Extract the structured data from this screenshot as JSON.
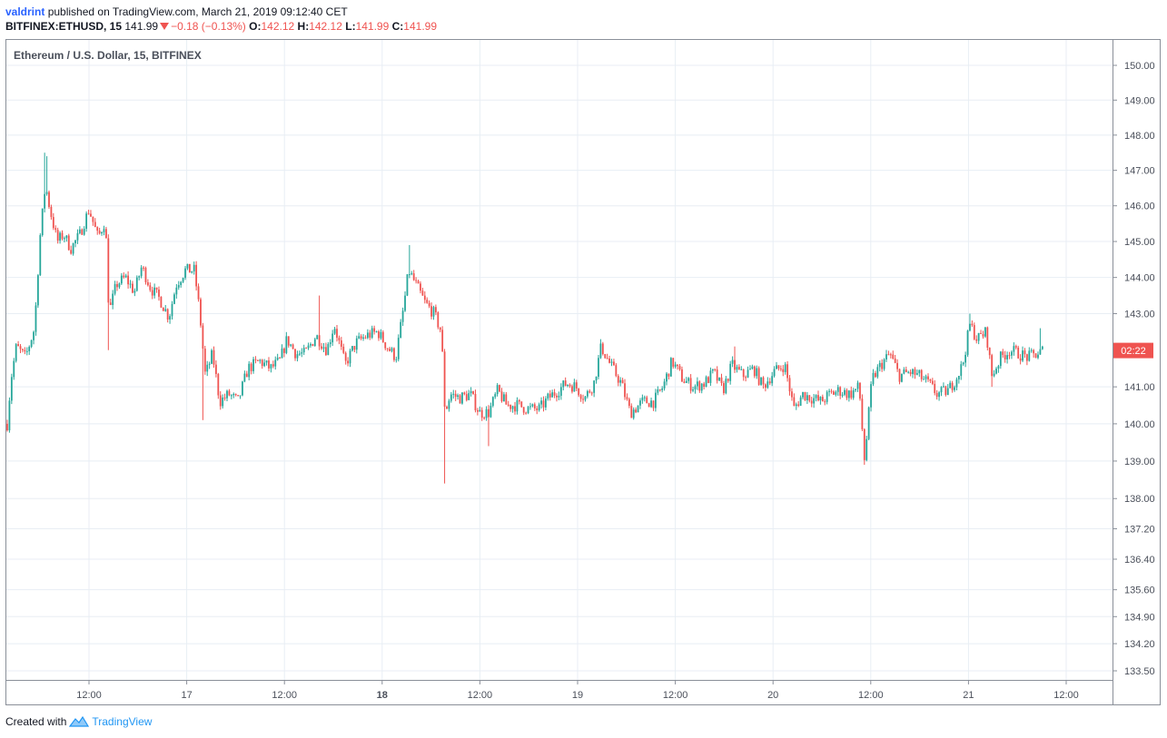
{
  "header": {
    "author": "valdrint",
    "published": "published on TradingView.com, March 21, 2019 09:12:40 CET",
    "symbol": "BITFINEX:ETHUSD, 15",
    "last": "141.99",
    "change": "−0.18 (−0.13%)",
    "o_label": "O:",
    "o_val": "142.12",
    "h_label": "H:",
    "h_val": "142.12",
    "l_label": "L:",
    "l_val": "141.99",
    "c_label": "C:",
    "c_val": "141.99"
  },
  "colors": {
    "up": "#26a69a",
    "down": "#ef5350",
    "grid": "#e8eef4",
    "brand": "#2196f3"
  },
  "footer": {
    "created": "Created with",
    "brand": "TradingView"
  },
  "chart_data": {
    "type": "candlestick",
    "title": "Ethereum / U.S. Dollar, 15, BITFINEX",
    "scale": "log",
    "ylim": [
      133.2,
      150.5
    ],
    "y_ticks": [
      "150.00",
      "149.00",
      "148.00",
      "147.00",
      "146.00",
      "145.00",
      "144.00",
      "143.00",
      "141.00",
      "140.00",
      "139.00",
      "138.00",
      "137.20",
      "136.40",
      "135.60",
      "134.90",
      "134.20",
      "133.50"
    ],
    "x_ticks": [
      {
        "label": "12:00",
        "bold": false
      },
      {
        "label": "17",
        "bold": false
      },
      {
        "label": "12:00",
        "bold": false
      },
      {
        "label": "18",
        "bold": true
      },
      {
        "label": "12:00",
        "bold": false
      },
      {
        "label": "19",
        "bold": false
      },
      {
        "label": "12:00",
        "bold": false
      },
      {
        "label": "20",
        "bold": false
      },
      {
        "label": "12:00",
        "bold": false
      },
      {
        "label": "21",
        "bold": false
      },
      {
        "label": "12:00",
        "bold": false
      }
    ],
    "last_price_label": "02:22",
    "last_price": 141.99,
    "close_path": [
      [
        0,
        140.0
      ],
      [
        4,
        141.2
      ],
      [
        10,
        142.1
      ],
      [
        20,
        141.8
      ],
      [
        30,
        142.6
      ],
      [
        36,
        145.1
      ],
      [
        42,
        146.6
      ],
      [
        47,
        145.9
      ],
      [
        55,
        145.0
      ],
      [
        62,
        145.2
      ],
      [
        70,
        144.8
      ],
      [
        80,
        145.2
      ],
      [
        90,
        145.9
      ],
      [
        100,
        145.1
      ],
      [
        108,
        145.6
      ],
      [
        112,
        143.0
      ],
      [
        120,
        143.8
      ],
      [
        130,
        144.0
      ],
      [
        140,
        143.6
      ],
      [
        148,
        144.3
      ],
      [
        158,
        143.7
      ],
      [
        168,
        143.4
      ],
      [
        178,
        142.9
      ],
      [
        186,
        143.8
      ],
      [
        196,
        144.2
      ],
      [
        206,
        144.2
      ],
      [
        212,
        143.0
      ],
      [
        218,
        141.3
      ],
      [
        226,
        141.9
      ],
      [
        234,
        140.6
      ],
      [
        244,
        140.8
      ],
      [
        254,
        140.6
      ],
      [
        265,
        141.5
      ],
      [
        278,
        141.7
      ],
      [
        290,
        141.5
      ],
      [
        300,
        141.7
      ],
      [
        308,
        142.3
      ],
      [
        318,
        141.9
      ],
      [
        328,
        141.9
      ],
      [
        340,
        142.4
      ],
      [
        352,
        142.0
      ],
      [
        360,
        142.7
      ],
      [
        372,
        141.6
      ],
      [
        384,
        142.2
      ],
      [
        396,
        142.4
      ],
      [
        408,
        142.5
      ],
      [
        418,
        142.1
      ],
      [
        428,
        141.8
      ],
      [
        436,
        143.1
      ],
      [
        442,
        144.2
      ],
      [
        452,
        143.7
      ],
      [
        460,
        143.3
      ],
      [
        470,
        143.0
      ],
      [
        478,
        142.5
      ],
      [
        482,
        140.3
      ],
      [
        488,
        140.8
      ],
      [
        498,
        140.7
      ],
      [
        510,
        140.8
      ],
      [
        520,
        140.3
      ],
      [
        530,
        140.3
      ],
      [
        540,
        140.9
      ],
      [
        550,
        140.5
      ],
      [
        562,
        140.5
      ],
      [
        574,
        140.4
      ],
      [
        586,
        140.4
      ],
      [
        596,
        140.7
      ],
      [
        606,
        140.9
      ],
      [
        616,
        141.1
      ],
      [
        626,
        141.0
      ],
      [
        636,
        140.7
      ],
      [
        646,
        141.1
      ],
      [
        654,
        142.1
      ],
      [
        664,
        141.6
      ],
      [
        676,
        141.1
      ],
      [
        686,
        140.3
      ],
      [
        700,
        140.6
      ],
      [
        712,
        140.6
      ],
      [
        722,
        141.0
      ],
      [
        732,
        141.7
      ],
      [
        744,
        141.2
      ],
      [
        756,
        141.0
      ],
      [
        768,
        141.1
      ],
      [
        778,
        141.4
      ],
      [
        788,
        140.9
      ],
      [
        798,
        141.6
      ],
      [
        810,
        141.3
      ],
      [
        822,
        141.5
      ],
      [
        832,
        141.0
      ],
      [
        844,
        141.4
      ],
      [
        856,
        141.6
      ],
      [
        866,
        140.4
      ],
      [
        876,
        140.8
      ],
      [
        886,
        140.7
      ],
      [
        896,
        140.6
      ],
      [
        906,
        140.8
      ],
      [
        916,
        140.9
      ],
      [
        928,
        140.8
      ],
      [
        938,
        141.0
      ],
      [
        944,
        139.0
      ],
      [
        952,
        141.2
      ],
      [
        962,
        141.6
      ],
      [
        972,
        141.9
      ],
      [
        982,
        141.3
      ],
      [
        994,
        141.4
      ],
      [
        1004,
        141.3
      ],
      [
        1014,
        141.1
      ],
      [
        1024,
        140.8
      ],
      [
        1036,
        140.9
      ],
      [
        1044,
        141.2
      ],
      [
        1052,
        141.6
      ],
      [
        1060,
        142.7
      ],
      [
        1068,
        142.3
      ],
      [
        1078,
        142.5
      ],
      [
        1084,
        141.3
      ],
      [
        1094,
        141.8
      ],
      [
        1104,
        142.0
      ],
      [
        1114,
        141.9
      ],
      [
        1124,
        141.8
      ],
      [
        1134,
        141.9
      ],
      [
        1140,
        142.0
      ]
    ],
    "spikes": [
      {
        "x": 40,
        "high": 147.5
      },
      {
        "x": 44,
        "high": 147.4
      },
      {
        "x": 112,
        "low": 142.0
      },
      {
        "x": 216,
        "low": 140.1
      },
      {
        "x": 344,
        "high": 143.5
      },
      {
        "x": 442,
        "high": 144.9
      },
      {
        "x": 482,
        "low": 138.4
      },
      {
        "x": 530,
        "low": 139.4
      },
      {
        "x": 654,
        "high": 142.3
      },
      {
        "x": 800,
        "high": 142.1
      },
      {
        "x": 944,
        "low": 138.9
      },
      {
        "x": 1060,
        "high": 143.0
      },
      {
        "x": 1084,
        "low": 141.0
      },
      {
        "x": 1138,
        "high": 142.6
      }
    ]
  }
}
